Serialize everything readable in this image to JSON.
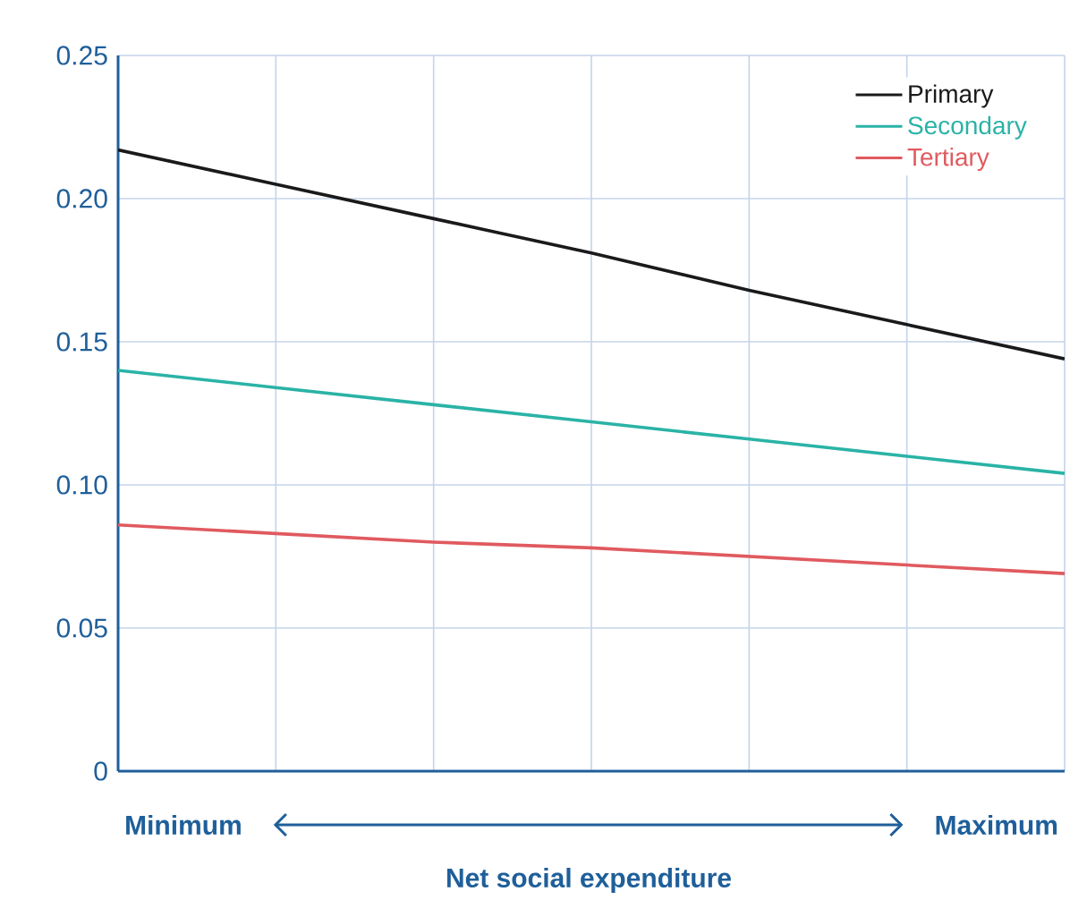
{
  "chart_data": {
    "type": "line",
    "xlabel": "Net social expenditure",
    "annotations": [
      "Minimum",
      "Maximum"
    ],
    "categories": [
      null,
      null,
      null,
      null,
      null,
      null,
      null
    ],
    "ylim": [
      0,
      0.25
    ],
    "yticks": [
      {
        "value": 0,
        "label": "0"
      },
      {
        "value": 0.05,
        "label": "0.05"
      },
      {
        "value": 0.1,
        "label": "0.10"
      },
      {
        "value": 0.15,
        "label": "0.15"
      },
      {
        "value": 0.2,
        "label": "0.20"
      },
      {
        "value": 0.25,
        "label": "0.25"
      }
    ],
    "tick_labels": "y",
    "grid": true,
    "legend": "top right",
    "marker": "none",
    "line_style": "solid",
    "series": [
      {
        "name": "Primary",
        "color": "#1a1a1a",
        "values": [
          0.217,
          0.205,
          0.193,
          0.181,
          0.168,
          0.156,
          0.144
        ]
      },
      {
        "name": "Secondary",
        "color": "#2ab3a6",
        "values": [
          0.14,
          0.134,
          0.128,
          0.122,
          0.116,
          0.11,
          0.104
        ]
      },
      {
        "name": "Tertiary",
        "color": "#e05a5f",
        "values": [
          0.086,
          0.083,
          0.08,
          0.078,
          0.075,
          0.072,
          0.069
        ]
      }
    ]
  }
}
